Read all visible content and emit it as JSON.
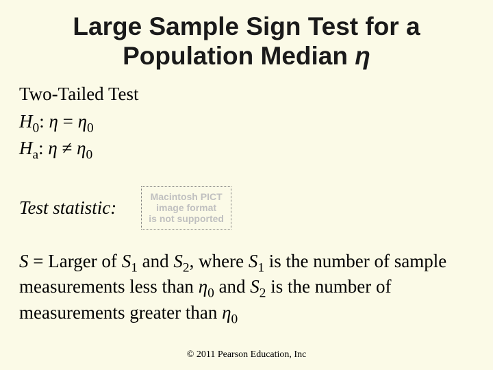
{
  "colors": {
    "background": "#fbfae7",
    "text": "#000000",
    "title": "#1a1a1a",
    "pict_text": "#c0c0c0",
    "pict_border": "#777777"
  },
  "fonts": {
    "title_family": "Arial",
    "body_family": "Times New Roman",
    "title_size_pt": 37,
    "body_size_pt": 27,
    "pict_size_pt": 14,
    "copyright_size_pt": 14
  },
  "title": {
    "line1": "Large Sample Sign Test for a",
    "line2_prefix": "Population Median ",
    "line2_symbol": "η"
  },
  "section_label": "Two-Tailed Test",
  "hypotheses": {
    "h0_label": "H",
    "h0_sub": "0",
    "h0_colon": ": ",
    "eta": "η",
    "equals": " = ",
    "eta0_sub": "0",
    "ha_label": "H",
    "ha_sub": "a",
    "ha_colon": ": ",
    "neq": " ≠ "
  },
  "teststat_label": "Test statistic:",
  "pict_placeholder": {
    "line1": "Macintosh PICT",
    "line2": "image format",
    "line3": "is not supported"
  },
  "body": {
    "S": "S",
    "t0": " = Larger of ",
    "S1": "S",
    "s1_sub": "1",
    "t1": " and ",
    "S2": "S",
    "s2_sub": "2",
    "t2": ", where ",
    "t3": " is the number of sample measurements less than ",
    "eta": "η",
    "eta0_sub": "0",
    "t4": " and ",
    "t5": " is the number of measurements greater than "
  },
  "copyright": "© 2011 Pearson Education, Inc"
}
